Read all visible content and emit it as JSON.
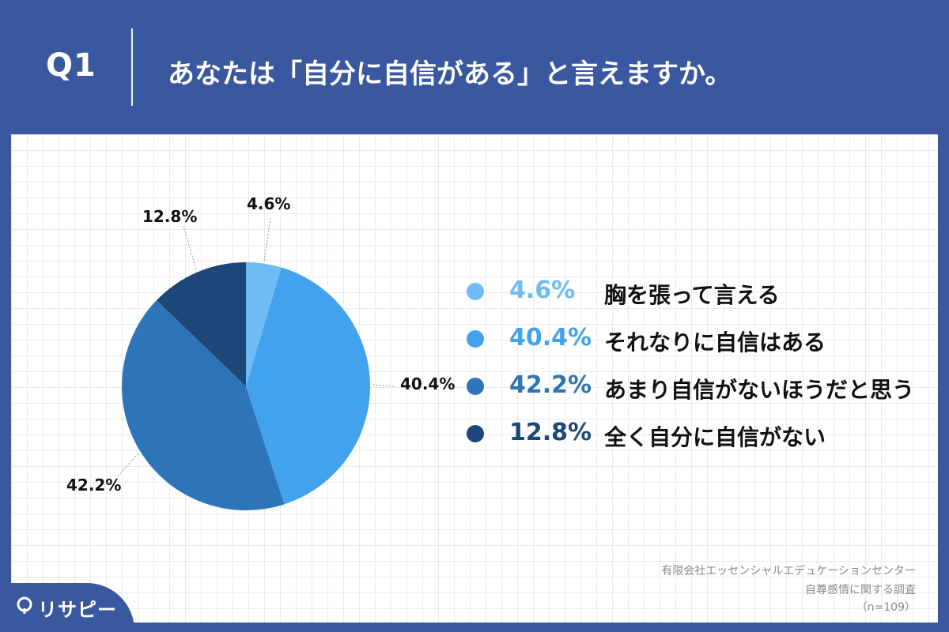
{
  "question": {
    "label": "Q1",
    "title": "あなたは「自分に自信がある」と言えますか。"
  },
  "chart_data": {
    "type": "pie",
    "categories": [
      "胸を張って言える",
      "それなりに自信はある",
      "あまり自信がないほうだと思う",
      "全く自分に自信がない"
    ],
    "values": [
      4.6,
      40.4,
      42.2,
      12.8
    ],
    "labels": [
      "4.6%",
      "40.4%",
      "42.2%",
      "12.8%"
    ],
    "colors": [
      "#6fbcf5",
      "#42a2ee",
      "#2e74b8",
      "#1c4778"
    ],
    "legend_pct_colors": [
      "#6fbcf5",
      "#42a2ee",
      "#2e74b8",
      "#1c4778"
    ]
  },
  "footer": {
    "line1": "有限会社エッセンシャルエデュケーションセンター",
    "line2": "自尊感情に関する調査",
    "line3": "（n=109）"
  },
  "brand": {
    "name": "リサピー"
  }
}
